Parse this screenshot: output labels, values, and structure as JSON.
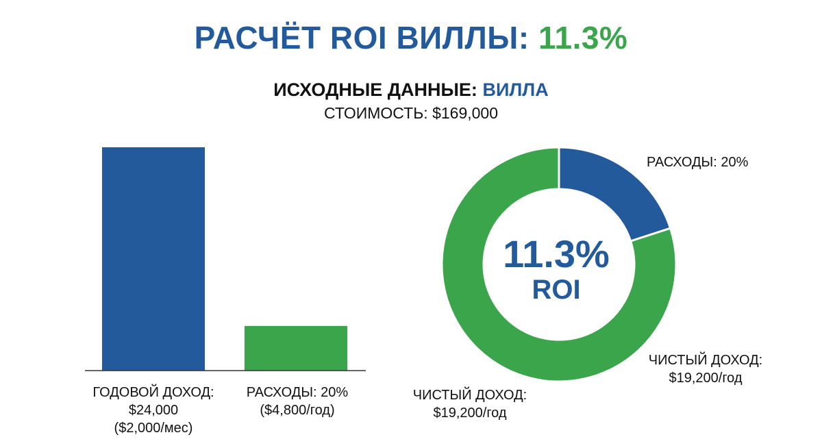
{
  "header": {
    "title_main": "РАСЧЁТ ROI ВИЛЛЫ:",
    "title_value": "11.3%",
    "subtitle_main": "ИСХОДНЫЕ ДАННЫЕ:",
    "subtitle_value": "ВИЛЛА",
    "cost": "СТОИМОСТЬ: $169,000"
  },
  "colors": {
    "blue": "#235a9c",
    "green": "#3aa54a",
    "axis": "#333333"
  },
  "chart_data": [
    {
      "type": "bar",
      "categories": [
        "ГОДОВОЙ ДОХОД",
        "РАСХОДЫ: 20%"
      ],
      "values": [
        24000,
        4800
      ],
      "ylim": [
        0,
        24000
      ],
      "colors": [
        "#235a9c",
        "#3aa54a"
      ],
      "labels": [
        {
          "line1": "ГОДОВОЙ ДОХОД:",
          "line2": "$24,000",
          "line3": "($2,000/мес)"
        },
        {
          "line1": "РАСХОДЫ: 20%",
          "line2": "($4,800/год)",
          "line3": ""
        }
      ]
    },
    {
      "type": "pie",
      "donut": true,
      "slices": [
        {
          "name": "РАСХОДЫ",
          "value": 20,
          "color": "#235a9c"
        },
        {
          "name": "ЧИСТЫЙ ДОХОД",
          "value": 80,
          "color": "#3aa54a"
        }
      ],
      "center_value": "11.3%",
      "center_label": "ROI",
      "labels": {
        "expenses": "РАСХОДЫ: 20%",
        "net_right_line1": "ЧИСТЫЙ ДОХОД:",
        "net_right_line2": "$19,200/год",
        "net_left_line1": "ЧИСТЫЙ ДОХОД:",
        "net_left_line2": "$19,200/год"
      }
    }
  ]
}
